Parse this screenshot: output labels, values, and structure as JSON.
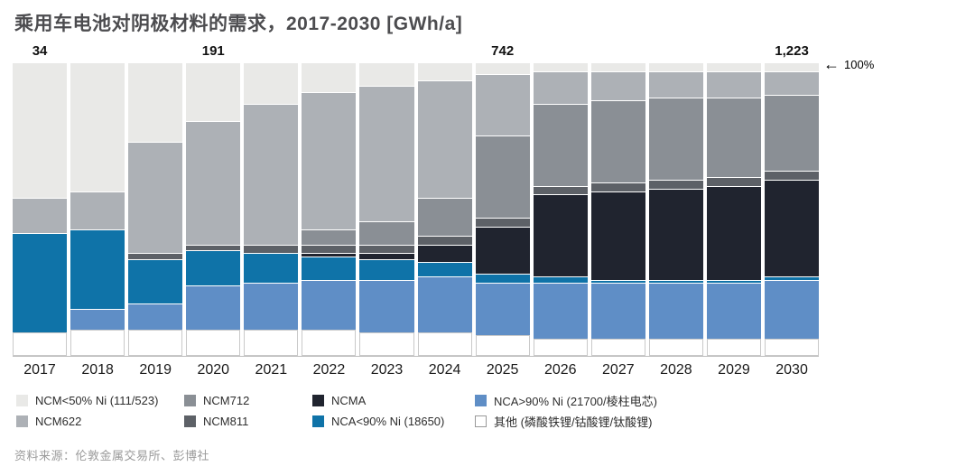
{
  "title": "乘用车电池对阴极材料的需求，2017-2030 [GWh/a]",
  "annotation_100": "100%",
  "source": "资料来源：伦敦金属交易所、彭博社",
  "chart_data": {
    "type": "bar",
    "stacked": true,
    "units": "percent of total GWh/a",
    "title": "乘用车电池对阴极材料的需求，2017-2030 [GWh/a]",
    "xlabel": "",
    "ylabel": "",
    "ylim": [
      0,
      100
    ],
    "legend_position": "bottom",
    "categories": [
      "2017",
      "2018",
      "2019",
      "2020",
      "2021",
      "2022",
      "2023",
      "2024",
      "2025",
      "2026",
      "2027",
      "2028",
      "2029",
      "2030"
    ],
    "total_labels": {
      "0": "34",
      "3": "191",
      "8": "742",
      "13": "1,223"
    },
    "series": [
      {
        "name": "其他 (磷酸铁锂/钴酸锂/钛酸锂)",
        "color": "#ffffff",
        "values": [
          8,
          9,
          9,
          9,
          9,
          9,
          8,
          8,
          7,
          6,
          6,
          6,
          6,
          6
        ]
      },
      {
        "name": "NCA>90% Ni (21700/棱柱电芯)",
        "color": "#5f8ec6",
        "values": [
          0,
          7,
          9,
          15,
          16,
          17,
          18,
          19,
          18,
          19,
          19,
          19,
          19,
          20
        ]
      },
      {
        "name": "NCA<90% Ni (18650)",
        "color": "#0f73a8",
        "values": [
          34,
          27,
          15,
          12,
          10,
          8,
          7,
          5,
          3,
          2,
          1,
          1,
          1,
          1
        ]
      },
      {
        "name": "NCMA",
        "color": "#20242f",
        "values": [
          0,
          0,
          0,
          0,
          0,
          1,
          2,
          6,
          16,
          28,
          30,
          31,
          32,
          33
        ]
      },
      {
        "name": "NCM811",
        "color": "#5d6167",
        "values": [
          0,
          0,
          2,
          2,
          3,
          3,
          3,
          3,
          3,
          3,
          3,
          3,
          3,
          3
        ]
      },
      {
        "name": "NCM712",
        "color": "#8a8f95",
        "values": [
          0,
          0,
          0,
          0,
          0,
          5,
          8,
          13,
          28,
          28,
          28,
          28,
          27,
          26
        ]
      },
      {
        "name": "NCM622",
        "color": "#adb1b6",
        "values": [
          12,
          13,
          38,
          42,
          48,
          47,
          46,
          40,
          21,
          11,
          10,
          9,
          9,
          8
        ]
      },
      {
        "name": "NCM<50% Ni (111/523)",
        "color": "#e9e9e7",
        "values": [
          46,
          44,
          27,
          20,
          14,
          10,
          8,
          6,
          4,
          3,
          3,
          3,
          3,
          3
        ]
      }
    ]
  },
  "legend": {
    "items": [
      {
        "label": "NCM<50% Ni (111/523)",
        "color": "#e9e9e7",
        "border": false
      },
      {
        "label": "NCM712",
        "color": "#8a8f95",
        "border": false
      },
      {
        "label": "NCMA",
        "color": "#20242f",
        "border": false
      },
      {
        "label": "NCA>90% Ni (21700/棱柱电芯)",
        "color": "#5f8ec6",
        "border": false
      },
      {
        "label": "NCM622",
        "color": "#adb1b6",
        "border": false
      },
      {
        "label": "NCM811",
        "color": "#5d6167",
        "border": false
      },
      {
        "label": "NCA<90% Ni (18650)",
        "color": "#0f73a8",
        "border": false
      },
      {
        "label": "其他 (磷酸铁锂/钴酸锂/钛酸锂)",
        "color": "#ffffff",
        "border": true
      }
    ]
  }
}
